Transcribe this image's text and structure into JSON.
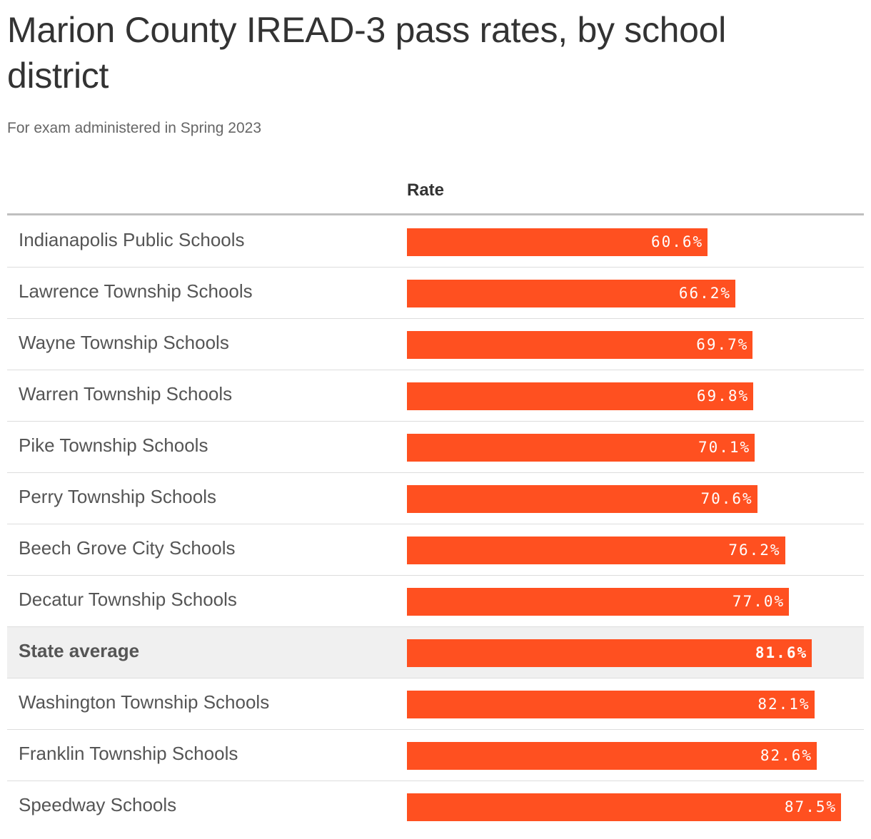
{
  "title": "Marion County IREAD-3 pass rates, by school district",
  "subtitle": "For exam administered in Spring 2023",
  "column_header": "Rate",
  "colors": {
    "bar": "#ff5020",
    "highlight_row": "#f0f0f0"
  },
  "chart_data": {
    "type": "bar",
    "orientation": "horizontal",
    "title": "Marion County IREAD-3 pass rates, by school district",
    "subtitle": "For exam administered in Spring 2023",
    "xlabel": "",
    "ylabel": "",
    "value_column": "Rate",
    "xlim": [
      0,
      100
    ],
    "categories": [
      "Indianapolis Public Schools",
      "Lawrence Township Schools",
      "Wayne Township Schools",
      "Warren Township Schools",
      "Pike Township Schools",
      "Perry Township Schools",
      "Beech Grove City Schools",
      "Decatur Township Schools",
      "State average",
      "Washington Township Schools",
      "Franklin Township Schools",
      "Speedway Schools"
    ],
    "values": [
      60.6,
      66.2,
      69.7,
      69.8,
      70.1,
      70.6,
      76.2,
      77.0,
      81.6,
      82.1,
      82.6,
      87.5
    ],
    "value_labels": [
      "60.6%",
      "66.2%",
      "69.7%",
      "69.8%",
      "70.1%",
      "70.6%",
      "76.2%",
      "77.0%",
      "81.6%",
      "82.1%",
      "82.6%",
      "87.5%"
    ],
    "highlighted_category": "State average"
  }
}
